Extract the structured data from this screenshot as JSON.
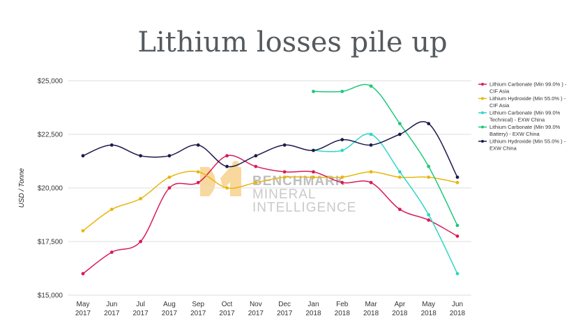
{
  "chart_data": {
    "type": "line",
    "title": "Lithium losses pile up",
    "ylabel": "USD / Tonne",
    "xlabel": "",
    "ylim": [
      15000,
      25000
    ],
    "yticks": [
      "$15,000",
      "$17,500",
      "$20,000",
      "$22,500",
      "$25,000"
    ],
    "ytick_values": [
      15000,
      17500,
      20000,
      22500,
      25000
    ],
    "categories": [
      [
        "May",
        "2017"
      ],
      [
        "Jun",
        "2017"
      ],
      [
        "Jul",
        "2017"
      ],
      [
        "Aug",
        "2017"
      ],
      [
        "Sep",
        "2017"
      ],
      [
        "Oct",
        "2017"
      ],
      [
        "Nov",
        "2017"
      ],
      [
        "Dec",
        "2017"
      ],
      [
        "Jan",
        "2018"
      ],
      [
        "Feb",
        "2018"
      ],
      [
        "Mar",
        "2018"
      ],
      [
        "Apr",
        "2018"
      ],
      [
        "May",
        "2018"
      ],
      [
        "Jun",
        "2018"
      ]
    ],
    "grid": true,
    "legend": "right",
    "series": [
      {
        "name": "Lithium Carbonate (Min 99.0% ) - CIF Asia",
        "color": "#d81b56",
        "values": [
          16000,
          17000,
          17500,
          20000,
          20250,
          21500,
          21000,
          20750,
          20750,
          20250,
          20250,
          19000,
          18500,
          17750
        ]
      },
      {
        "name": "Lithium Hydroxide (Min 55.0% ) - CIF Asia",
        "color": "#e8b60c",
        "values": [
          18000,
          19000,
          19500,
          20500,
          20750,
          20000,
          20250,
          20500,
          20500,
          20500,
          20750,
          20500,
          20500,
          20250
        ]
      },
      {
        "name": "Lithium Carbonate (Min 99.0% Technical) - EXW China",
        "color": "#2fd6c8",
        "values": [
          null,
          null,
          null,
          null,
          null,
          null,
          null,
          null,
          21750,
          21750,
          22500,
          20750,
          18750,
          16000
        ]
      },
      {
        "name": "Lithium Carbonate (Min 99.0% Battery) - EXW China",
        "color": "#1fc77a",
        "values": [
          null,
          null,
          null,
          null,
          null,
          null,
          null,
          null,
          24500,
          24500,
          24750,
          23000,
          21000,
          18250
        ]
      },
      {
        "name": "Lithium Hydroxide (Min 55.0% ) - EXW China",
        "color": "#1c1a4a",
        "values": [
          21500,
          22000,
          21500,
          21500,
          22000,
          21000,
          21500,
          22000,
          21750,
          22250,
          22000,
          22500,
          23000,
          20500
        ]
      }
    ]
  },
  "watermark": {
    "line1": "BENCHMARK",
    "line2": "MINERAL",
    "line3": "INTELLIGENCE",
    "color": "#f7c873"
  }
}
